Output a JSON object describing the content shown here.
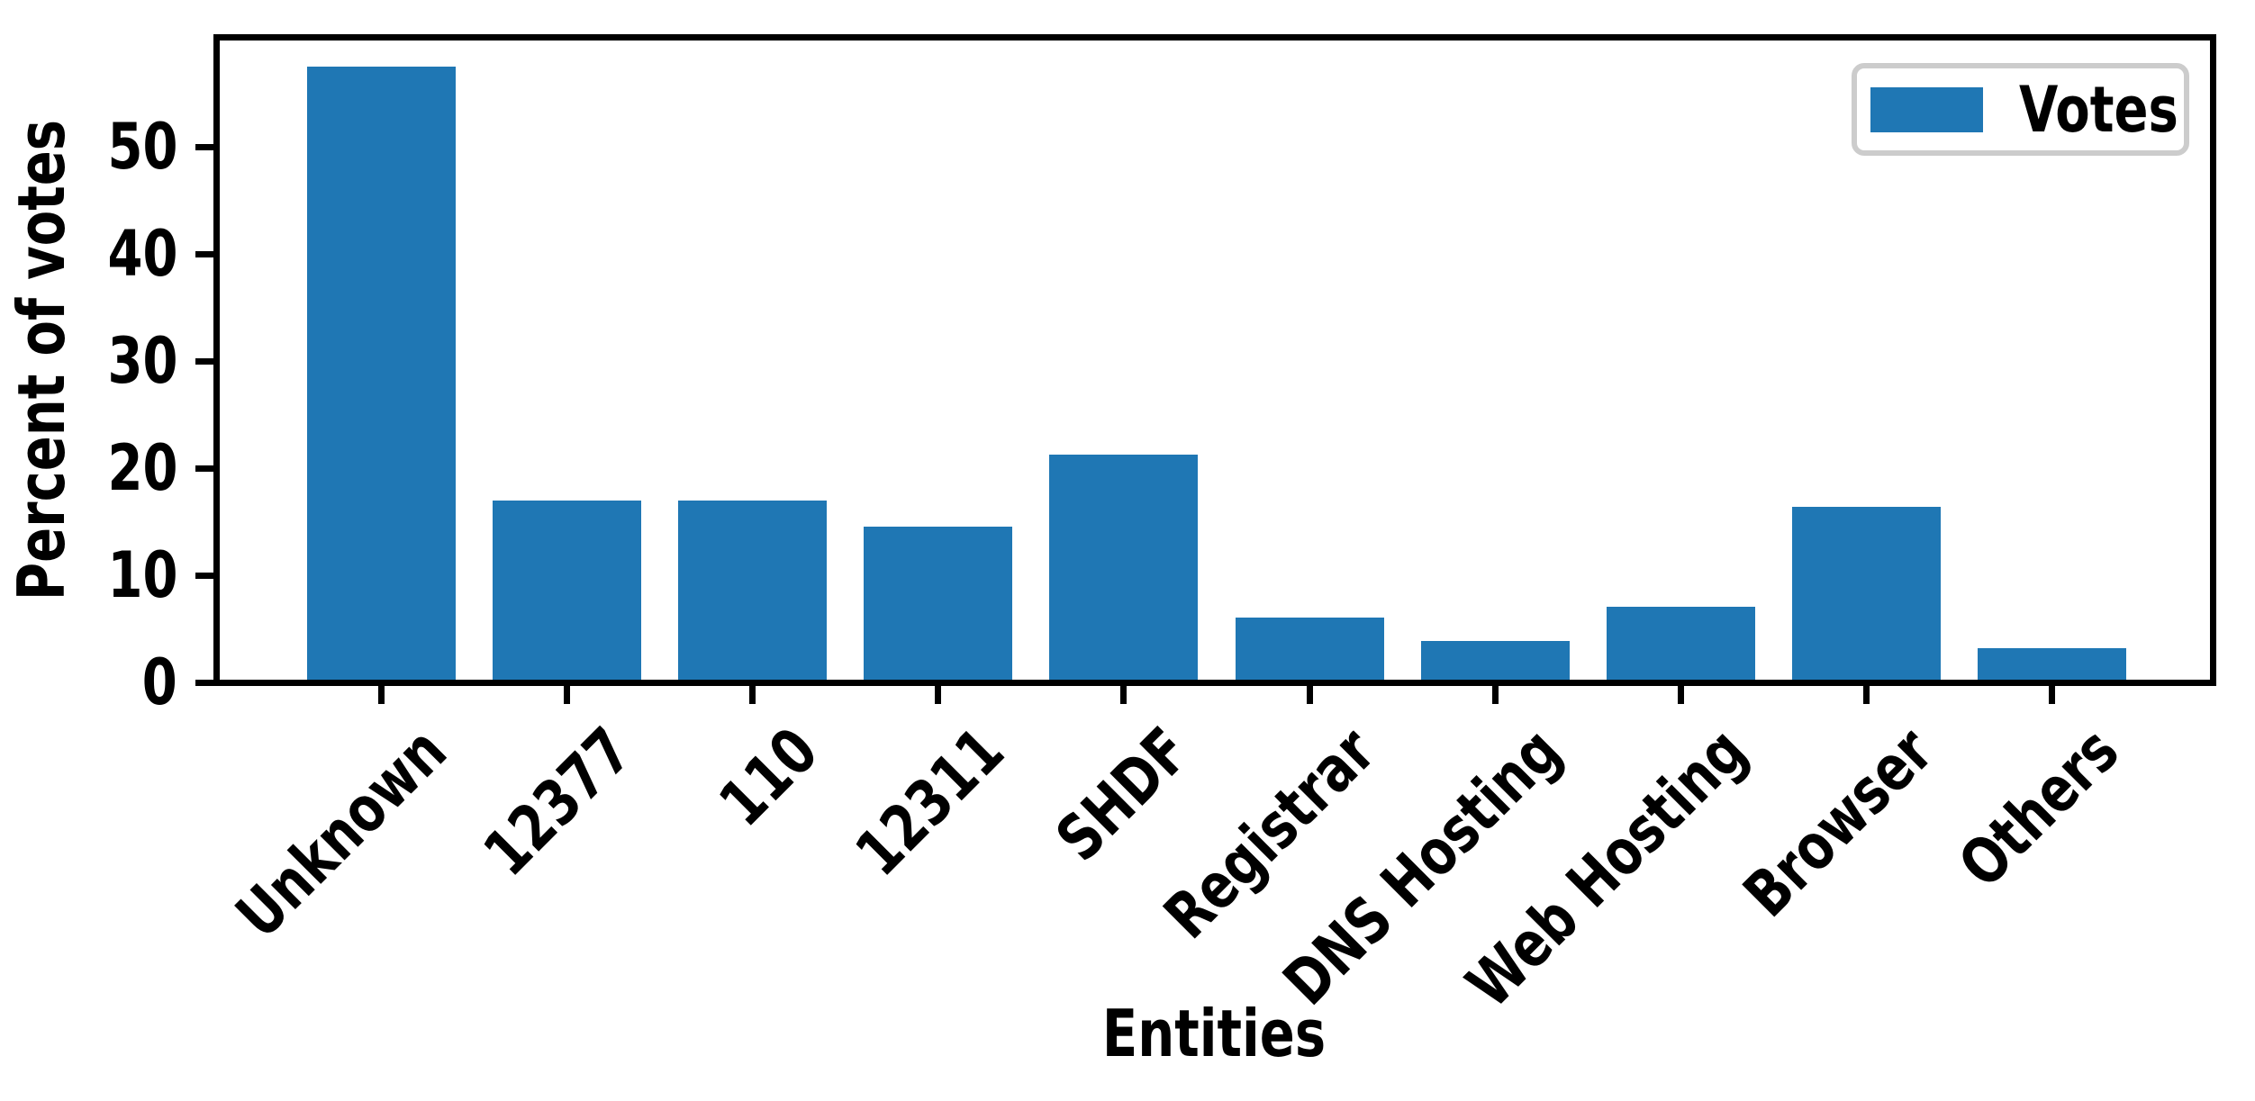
{
  "figure": {
    "background": "#ffffff",
    "axis_color": "#000000",
    "legend_border_color": "#cccccc"
  },
  "chart_data": {
    "type": "bar",
    "title": "",
    "xlabel": "Entities",
    "ylabel": "Percent of votes",
    "categories": [
      "Unknown",
      "12377",
      "110",
      "12311",
      "SHDF",
      "Registrar",
      "DNS Hosting",
      "Web Hosting",
      "Browser",
      "Others"
    ],
    "series": [
      {
        "name": "Votes",
        "values": [
          57.2,
          16.7,
          16.7,
          14.3,
          21.0,
          5.8,
          3.6,
          6.8,
          16.1,
          2.9
        ]
      }
    ],
    "bar_color": "#1f77b4",
    "ylim": [
      0,
      60
    ],
    "yticks": [
      0,
      10,
      20,
      30,
      40,
      50
    ],
    "ytick_labels": [
      "0",
      "10",
      "20",
      "30",
      "40",
      "50"
    ],
    "xtick_rotation": 45,
    "grid": false,
    "legend_position": "upper right",
    "legend_labels": [
      "Votes"
    ]
  }
}
